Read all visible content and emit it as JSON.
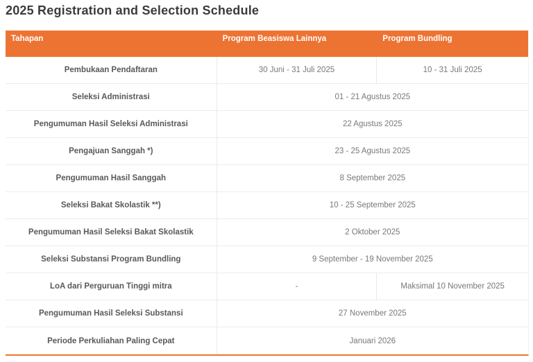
{
  "page": {
    "title": "2025 Registration and Selection Schedule"
  },
  "table": {
    "columns": [
      "Tahapan",
      "Program Beasiswa Lainnya",
      "Program Bundling"
    ],
    "rows": [
      {
        "tahapan": "Pembukaan Pendaftaran",
        "beasiswa": "30 Juni - 31 Juli 2025",
        "bundling": "10 - 31 Juli 2025"
      },
      {
        "tahapan": "Seleksi Administrasi",
        "merged": "01 - 21 Agustus 2025"
      },
      {
        "tahapan": "Pengumuman Hasil Seleksi Administrasi",
        "merged": "22 Agustus 2025"
      },
      {
        "tahapan": "Pengajuan Sanggah *)",
        "merged": "23 - 25 Agustus 2025"
      },
      {
        "tahapan": "Pengumuman Hasil Sanggah",
        "merged": "8 September 2025"
      },
      {
        "tahapan": "Seleksi Bakat Skolastik **)",
        "merged": "10 - 25 September 2025"
      },
      {
        "tahapan": "Pengumuman Hasil Seleksi Bakat Skolastik",
        "merged": "2 Oktober 2025"
      },
      {
        "tahapan": "Seleksi Substansi Program Bundling",
        "merged": "9 September - 19 November 2025"
      },
      {
        "tahapan": "LoA dari Perguruan Tinggi mitra",
        "beasiswa": "-",
        "bundling": "Maksimal 10 November 2025"
      },
      {
        "tahapan": "Pengumuman Hasil Seleksi Substansi",
        "merged": "27 November 2025"
      },
      {
        "tahapan": "Periode Perkuliahan Paling Cepat",
        "merged": "Januari 2026"
      }
    ]
  },
  "colors": {
    "accent": "#ED7333",
    "header_text": "#FFFFFF",
    "label_text": "#58595B",
    "value_text": "#77787B",
    "grid_line": "#ECECEC",
    "title_text": "#3B3B3D",
    "page_bg": "#FFFFFF"
  }
}
